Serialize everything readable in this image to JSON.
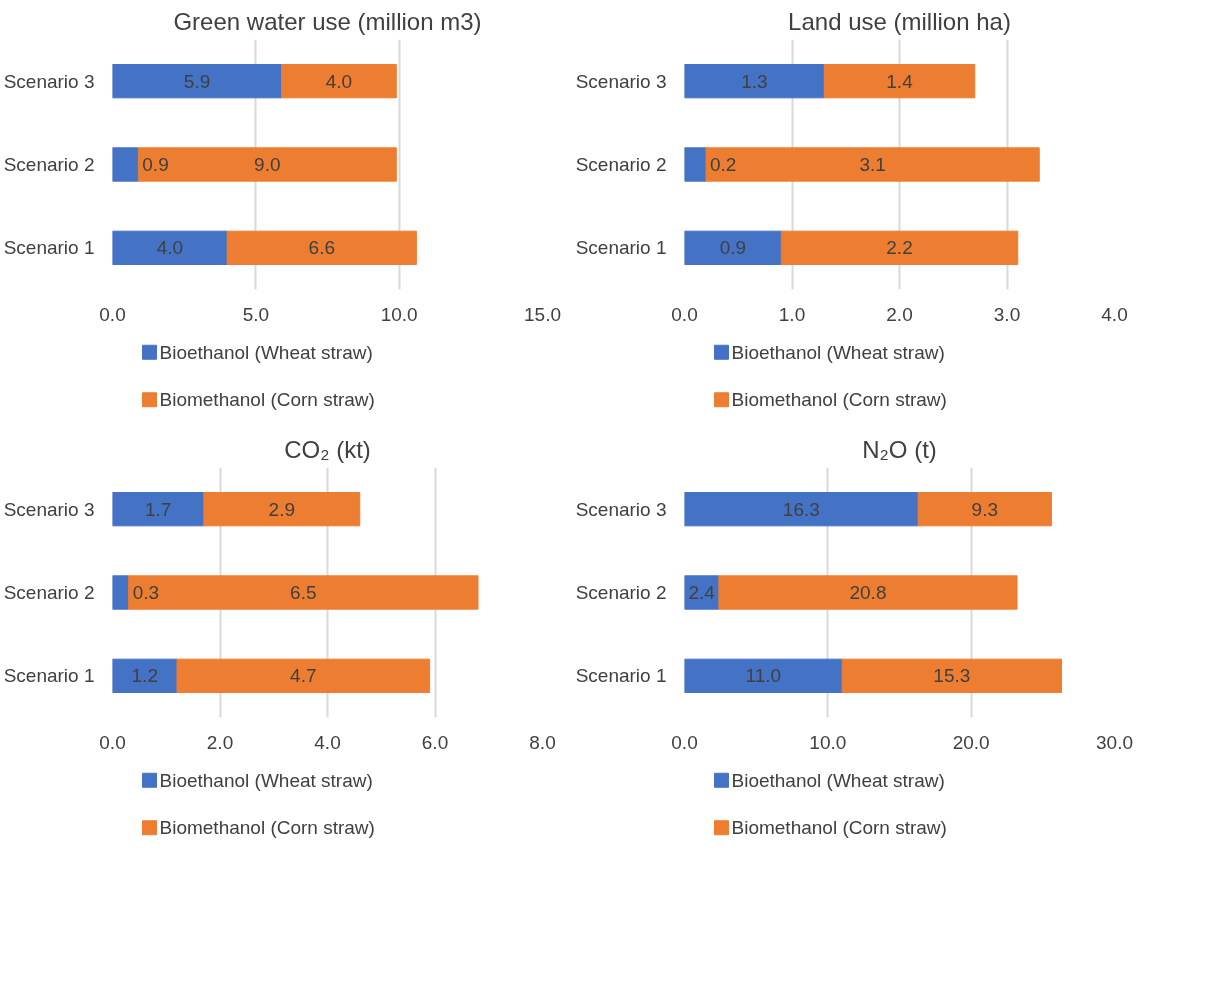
{
  "chart_data": [
    {
      "type": "bar",
      "orientation": "horizontal",
      "stacked": true,
      "title": "Green water use (million m3)",
      "categories": [
        "Scenario 3",
        "Scenario 2",
        "Scenario 1"
      ],
      "series": [
        {
          "name": "Bioethanol (Wheat straw)",
          "color": "#4472c4",
          "values": [
            5.9,
            0.9,
            4.0
          ],
          "value_labels": [
            "5.9",
            "0.9",
            "4.0"
          ]
        },
        {
          "name": "Biomethanol (Corn straw)",
          "color": "#ed7d31",
          "values": [
            4.0,
            9.0,
            6.6
          ],
          "value_labels": [
            "4.0",
            "9.0",
            "6.6"
          ]
        }
      ],
      "xlim": [
        0,
        15
      ],
      "xticks": [
        {
          "value": 0,
          "label": "0.0"
        },
        {
          "value": 5,
          "label": "5.0"
        },
        {
          "value": 10,
          "label": "10.0"
        },
        {
          "value": 15,
          "label": "15.0"
        }
      ],
      "grid": "x",
      "legend": "bottom"
    },
    {
      "type": "bar",
      "orientation": "horizontal",
      "stacked": true,
      "title": "Land use (million ha)",
      "categories": [
        "Scenario 3",
        "Scenario 2",
        "Scenario 1"
      ],
      "series": [
        {
          "name": "Bioethanol (Wheat straw)",
          "color": "#4472c4",
          "values": [
            1.3,
            0.2,
            0.9
          ],
          "value_labels": [
            "1.3",
            "0.2",
            "0.9"
          ]
        },
        {
          "name": "Biomethanol (Corn straw)",
          "color": "#ed7d31",
          "values": [
            1.4,
            3.1,
            2.2
          ],
          "value_labels": [
            "1.4",
            "3.1",
            "2.2"
          ]
        }
      ],
      "xlim": [
        0,
        4
      ],
      "xticks": [
        {
          "value": 0,
          "label": "0.0"
        },
        {
          "value": 1,
          "label": "1.0"
        },
        {
          "value": 2,
          "label": "2.0"
        },
        {
          "value": 3,
          "label": "3.0"
        },
        {
          "value": 4,
          "label": "4.0"
        }
      ],
      "grid": "x",
      "legend": "bottom"
    },
    {
      "type": "bar",
      "orientation": "horizontal",
      "stacked": true,
      "title": "CO₂ (kt)",
      "categories": [
        "Scenario 3",
        "Scenario 2",
        "Scenario 1"
      ],
      "series": [
        {
          "name": "Bioethanol (Wheat straw)",
          "color": "#4472c4",
          "values": [
            1.7,
            0.3,
            1.2
          ],
          "value_labels": [
            "1.7",
            "0.3",
            "1.2"
          ]
        },
        {
          "name": "Biomethanol (Corn straw)",
          "color": "#ed7d31",
          "values": [
            2.9,
            6.5,
            4.7
          ],
          "value_labels": [
            "2.9",
            "6.5",
            "4.7"
          ]
        }
      ],
      "xlim": [
        0,
        8
      ],
      "xticks": [
        {
          "value": 0,
          "label": "0.0"
        },
        {
          "value": 2,
          "label": "2.0"
        },
        {
          "value": 4,
          "label": "4.0"
        },
        {
          "value": 6,
          "label": "6.0"
        },
        {
          "value": 8,
          "label": "8.0"
        }
      ],
      "grid": "x",
      "legend": "bottom"
    },
    {
      "type": "bar",
      "orientation": "horizontal",
      "stacked": true,
      "title": "N₂O (t)",
      "categories": [
        "Scenario 3",
        "Scenario 2",
        "Scenario 1"
      ],
      "series": [
        {
          "name": "Bioethanol (Wheat straw)",
          "color": "#4472c4",
          "values": [
            16.3,
            2.4,
            11.0
          ],
          "value_labels": [
            "16.3",
            "2.4",
            "11.0"
          ]
        },
        {
          "name": "Biomethanol (Corn straw)",
          "color": "#ed7d31",
          "values": [
            9.3,
            20.8,
            15.3
          ],
          "value_labels": [
            "9.3",
            "20.8",
            "15.3"
          ]
        }
      ],
      "xlim": [
        0,
        30
      ],
      "xticks": [
        {
          "value": 0,
          "label": "0.0"
        },
        {
          "value": 10,
          "label": "10.0"
        },
        {
          "value": 20,
          "label": "20.0"
        },
        {
          "value": 30,
          "label": "30.0"
        }
      ],
      "grid": "x",
      "legend": "bottom"
    }
  ]
}
